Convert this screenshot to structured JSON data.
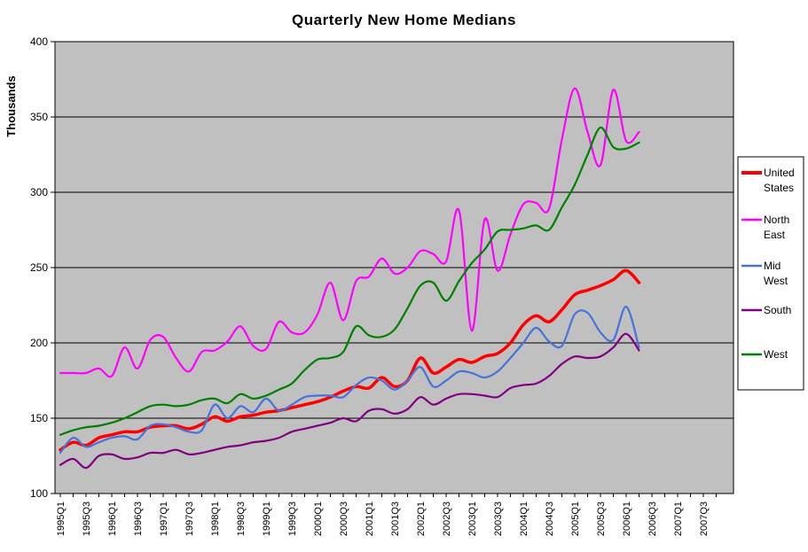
{
  "chart_data": {
    "type": "line",
    "title": "Quarterly New Home Medians",
    "ylabel": "Thousands",
    "ylim": [
      100,
      400
    ],
    "yticks": [
      400,
      350,
      300,
      250,
      200,
      150,
      100
    ],
    "x_tick_labels": [
      "1995Q1",
      "1995Q3",
      "1996Q1",
      "1996Q3",
      "1997Q1",
      "1997Q3",
      "1998Q1",
      "1998Q3",
      "1999Q1",
      "1999Q3",
      "2000Q1",
      "2000Q3",
      "2001Q1",
      "2001Q3",
      "2002Q1",
      "2002Q3",
      "2003Q1",
      "2003Q3",
      "2004Q1",
      "2004Q3",
      "2005Q1",
      "2005Q3",
      "2006Q1",
      "2006Q3",
      "2007Q1",
      "2007Q3"
    ],
    "label_every_n_quarters": 2,
    "n_categories": 52,
    "data_start_category": "1995Q1",
    "data_end_category": "2006Q2",
    "grid": "horizontal",
    "plot_bg_color": "#c0c0c0",
    "gridline_color": "#000000",
    "legend_position": "right",
    "series": [
      {
        "name": "United States",
        "legend_lines": [
          "United",
          "States"
        ],
        "color": "#ff0000",
        "width": 3.5,
        "values": [
          129,
          134,
          132,
          137,
          139,
          141,
          141,
          144,
          145,
          145,
          143,
          146,
          151,
          148,
          151,
          152,
          154,
          155,
          157,
          159,
          161,
          164,
          168,
          171,
          170,
          177,
          171,
          175,
          190,
          180,
          184,
          189,
          187,
          191,
          193,
          200,
          212,
          218,
          214,
          222,
          232,
          235,
          238,
          242,
          248,
          240
        ]
      },
      {
        "name": "North East",
        "legend_lines": [
          "North",
          "East"
        ],
        "color": "#ff00ff",
        "width": 2.2,
        "values": [
          180,
          180,
          180,
          183,
          178,
          197,
          183,
          202,
          204,
          190,
          181,
          194,
          195,
          201,
          211,
          198,
          196,
          214,
          207,
          207,
          219,
          240,
          215,
          241,
          244,
          256,
          246,
          250,
          261,
          259,
          254,
          288,
          208,
          282,
          248,
          272,
          292,
          293,
          289,
          335,
          369,
          340,
          318,
          368,
          334,
          340
        ]
      },
      {
        "name": "Mid West",
        "legend_lines": [
          "Mid",
          "West"
        ],
        "color": "#4672dc",
        "width": 2.2,
        "values": [
          127,
          137,
          131,
          134,
          137,
          138,
          136,
          145,
          146,
          144,
          141,
          142,
          159,
          150,
          158,
          154,
          163,
          155,
          159,
          164,
          165,
          165,
          164,
          172,
          177,
          175,
          169,
          175,
          184,
          171,
          175,
          181,
          180,
          177,
          181,
          190,
          200,
          210,
          201,
          198,
          219,
          220,
          207,
          202,
          224,
          197
        ]
      },
      {
        "name": "South",
        "legend_lines": [
          "South"
        ],
        "color": "#800080",
        "width": 2.2,
        "values": [
          119,
          123,
          117,
          125,
          126,
          123,
          124,
          127,
          127,
          129,
          126,
          127,
          129,
          131,
          132,
          134,
          135,
          137,
          141,
          143,
          145,
          147,
          150,
          148,
          155,
          156,
          153,
          156,
          164,
          159,
          163,
          166,
          166,
          165,
          164,
          170,
          172,
          173,
          178,
          186,
          191,
          190,
          191,
          197,
          206,
          195
        ]
      },
      {
        "name": "West",
        "legend_lines": [
          "West"
        ],
        "color": "#008000",
        "width": 2.2,
        "values": [
          139,
          142,
          144,
          145,
          147,
          150,
          154,
          158,
          159,
          158,
          159,
          162,
          163,
          160,
          166,
          163,
          165,
          169,
          173,
          182,
          189,
          190,
          194,
          211,
          205,
          204,
          209,
          223,
          238,
          240,
          228,
          241,
          253,
          262,
          274,
          275,
          276,
          278,
          275,
          290,
          305,
          325,
          343,
          330,
          329,
          333
        ]
      }
    ]
  }
}
